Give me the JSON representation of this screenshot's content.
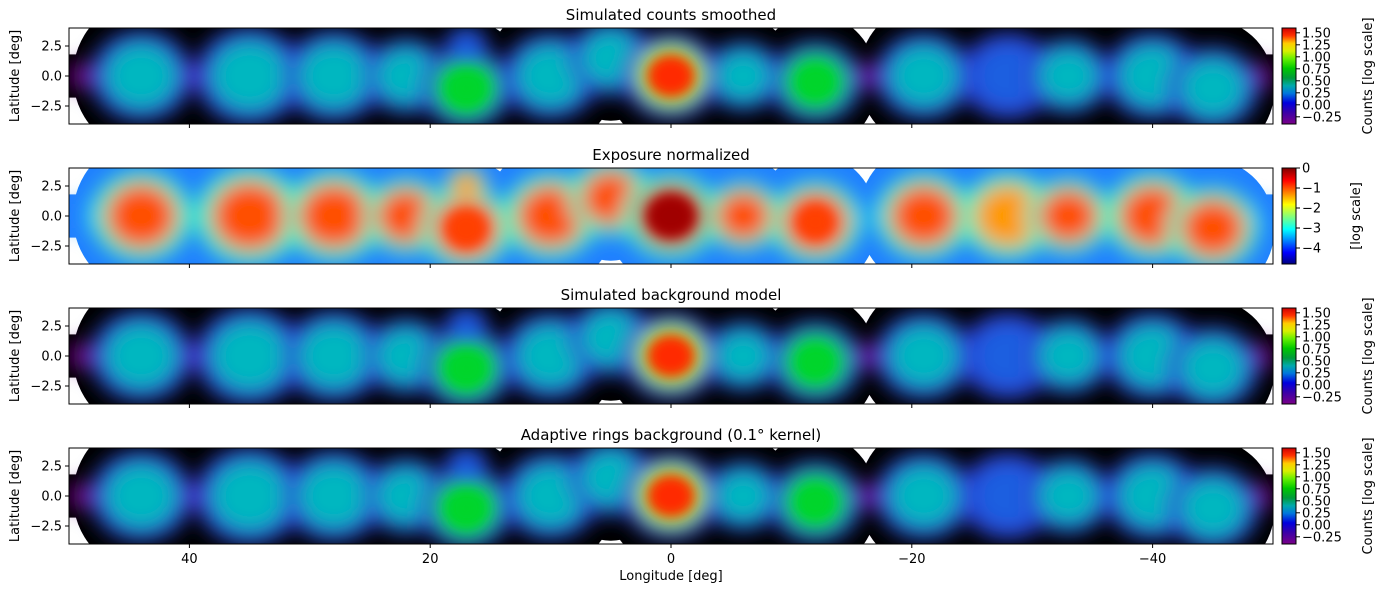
{
  "x_label": "Longitude [deg]",
  "chart_data": [
    {
      "type": "heatmap",
      "title": "Simulated counts smoothed",
      "ylabel": "Latitude [deg]",
      "colorbar_label": "Counts [log scale]",
      "colorbar_ticks": [
        "1.50",
        "1.25",
        "1.00",
        "0.75",
        "0.50",
        "0.25",
        "0.00",
        "−0.25"
      ],
      "colorbar_values": [
        1.5,
        1.25,
        1.0,
        0.75,
        0.5,
        0.25,
        0.0,
        -0.25
      ],
      "colorbar_range": [
        -0.4,
        1.6
      ],
      "colormap": "nipy_spectral",
      "xlim": [
        50,
        -50
      ],
      "ylim": [
        -4,
        4
      ],
      "yticks": [
        "2.5",
        "0.0",
        "−2.5"
      ],
      "ytick_values": [
        2.5,
        0.0,
        -2.5
      ],
      "xticks": [
        "40",
        "20",
        "0",
        "−20",
        "−40"
      ],
      "xtick_values": [
        40,
        20,
        0,
        -20,
        -40
      ],
      "show_xticklabels": false
    },
    {
      "type": "heatmap",
      "title": "Exposure normalized",
      "ylabel": "Latitude [deg]",
      "colorbar_label": "[log scale]",
      "colorbar_ticks": [
        "0",
        "−1",
        "−2",
        "−3",
        "−4"
      ],
      "colorbar_values": [
        0,
        -1,
        -2,
        -3,
        -4
      ],
      "colorbar_range": [
        -4.8,
        0
      ],
      "colormap": "jet",
      "xlim": [
        50,
        -50
      ],
      "ylim": [
        -4,
        4
      ],
      "yticks": [
        "2.5",
        "0.0",
        "−2.5"
      ],
      "ytick_values": [
        2.5,
        0.0,
        -2.5
      ],
      "xticks": [
        "40",
        "20",
        "0",
        "−20",
        "−40"
      ],
      "xtick_values": [
        40,
        20,
        0,
        -20,
        -40
      ],
      "show_xticklabels": false
    },
    {
      "type": "heatmap",
      "title": "Simulated background model",
      "ylabel": "Latitude [deg]",
      "colorbar_label": "Counts [log scale]",
      "colorbar_ticks": [
        "1.50",
        "1.25",
        "1.00",
        "0.75",
        "0.50",
        "0.25",
        "0.00",
        "−0.25"
      ],
      "colorbar_values": [
        1.5,
        1.25,
        1.0,
        0.75,
        0.5,
        0.25,
        0.0,
        -0.25
      ],
      "colorbar_range": [
        -0.4,
        1.6
      ],
      "colormap": "nipy_spectral",
      "xlim": [
        50,
        -50
      ],
      "ylim": [
        -4,
        4
      ],
      "yticks": [
        "2.5",
        "0.0",
        "−2.5"
      ],
      "ytick_values": [
        2.5,
        0.0,
        -2.5
      ],
      "xticks": [
        "40",
        "20",
        "0",
        "−20",
        "−40"
      ],
      "xtick_values": [
        40,
        20,
        0,
        -20,
        -40
      ],
      "show_xticklabels": false
    },
    {
      "type": "heatmap",
      "title": "Adaptive rings background (0.1° kernel)",
      "ylabel": "Latitude [deg]",
      "xlabel": "Longitude [deg]",
      "colorbar_label": "Counts [log scale]",
      "colorbar_ticks": [
        "1.50",
        "1.25",
        "1.00",
        "0.75",
        "0.50",
        "0.25",
        "0.00",
        "−0.25"
      ],
      "colorbar_values": [
        1.5,
        1.25,
        1.0,
        0.75,
        0.5,
        0.25,
        0.0,
        -0.25
      ],
      "colorbar_range": [
        -0.4,
        1.6
      ],
      "colormap": "nipy_spectral",
      "xlim": [
        50,
        -50
      ],
      "ylim": [
        -4,
        4
      ],
      "yticks": [
        "2.5",
        "0.0",
        "−2.5"
      ],
      "ytick_values": [
        2.5,
        0.0,
        -2.5
      ],
      "xticks": [
        "40",
        "20",
        "0",
        "−20",
        "−40"
      ],
      "xtick_values": [
        40,
        20,
        0,
        -20,
        -40
      ],
      "show_xticklabels": true
    }
  ]
}
